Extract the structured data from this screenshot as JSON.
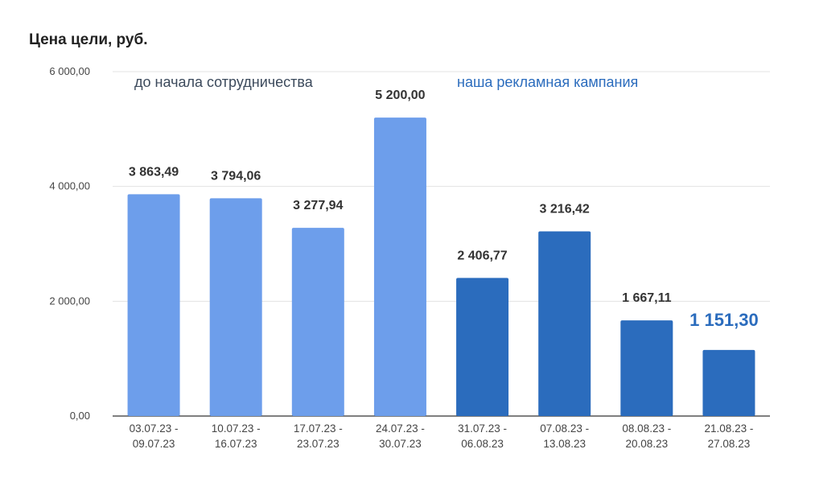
{
  "chart_data": {
    "type": "bar",
    "title": "Цена цели, руб.",
    "categories": [
      [
        "03.07.23 -",
        "09.07.23"
      ],
      [
        "10.07.23 -",
        "16.07.23"
      ],
      [
        "17.07.23 -",
        "23.07.23"
      ],
      [
        "24.07.23 -",
        "30.07.23"
      ],
      [
        "31.07.23 -",
        "06.08.23"
      ],
      [
        "07.08.23 -",
        "13.08.23"
      ],
      [
        "08.08.23 -",
        "20.08.23"
      ],
      [
        "21.08.23 -",
        "27.08.23"
      ]
    ],
    "values": [
      3863.49,
      3794.06,
      3277.94,
      5200.0,
      2406.77,
      3216.42,
      1667.11,
      1151.3
    ],
    "data_labels": [
      "3 863,49",
      "3 794,06",
      "3 277,94",
      "5 200,00",
      "2 406,77",
      "3 216,42",
      "1 667,11",
      "1 151,30"
    ],
    "ylim": [
      0,
      6000
    ],
    "yticks": [
      {
        "value": 0,
        "label": "0,00"
      },
      {
        "value": 2000,
        "label": "2 000,00"
      },
      {
        "value": 4000,
        "label": "4 000,00"
      },
      {
        "value": 6000,
        "label": "6 000,00"
      }
    ],
    "grid": true,
    "segments": [
      {
        "label": "до начала сотрудничества",
        "bars": [
          0,
          1,
          2,
          3
        ],
        "color": "#6d9eeb",
        "label_color": "#3c4a5c"
      },
      {
        "label": "наша рекламная кампания",
        "bars": [
          4,
          5,
          6,
          7
        ],
        "color": "#2b6cbd",
        "label_color": "#2b6cbd"
      }
    ],
    "highlight_bar": 7,
    "highlight_color": "#2b6cbd"
  }
}
